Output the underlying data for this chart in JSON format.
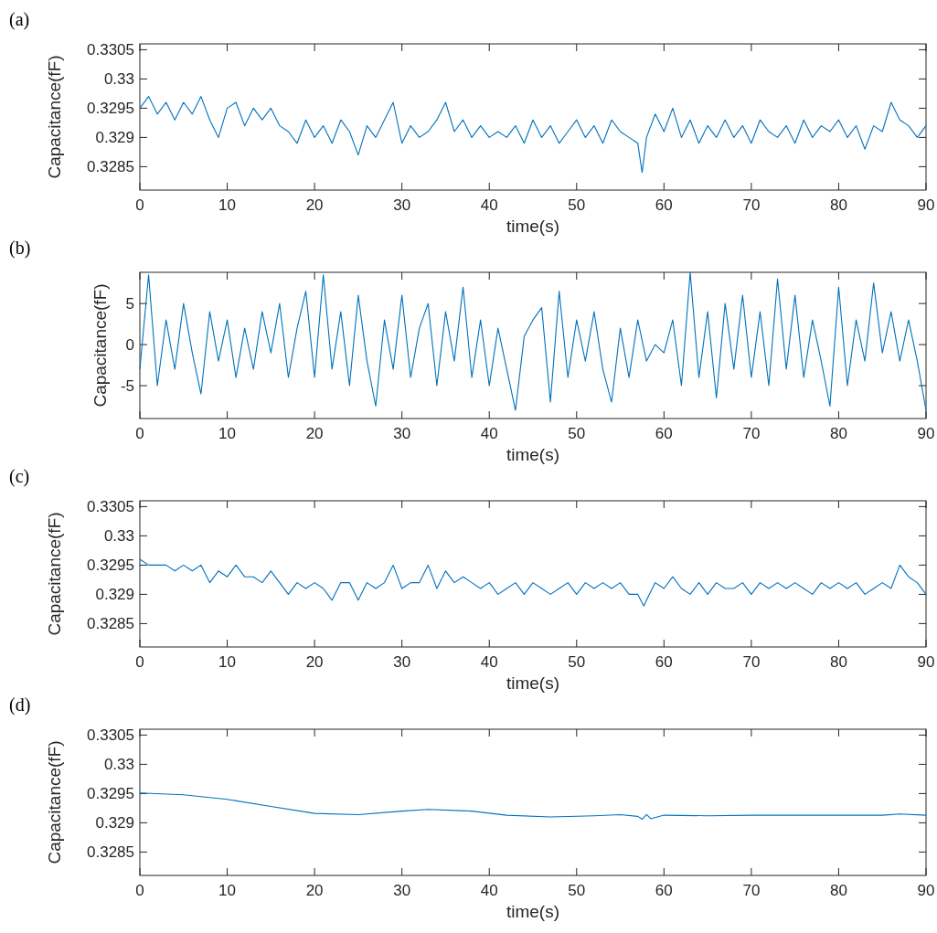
{
  "chart_data": [
    {
      "type": "line",
      "title": "(a)",
      "xlabel": "time(s)",
      "ylabel": "Capacitance(fF)",
      "xlim": [
        0,
        90
      ],
      "ylim": [
        0.3281,
        0.3306
      ],
      "xticks": [
        0,
        10,
        20,
        30,
        40,
        50,
        60,
        70,
        80,
        90
      ],
      "yticks": [
        0.3285,
        0.329,
        0.3295,
        0.33,
        0.3305
      ],
      "series": [
        {
          "color": "#0072bd",
          "x": [
            0,
            1,
            2,
            3,
            4,
            5,
            6,
            7,
            8,
            9,
            10,
            11,
            12,
            13,
            14,
            15,
            16,
            17,
            18,
            19,
            20,
            21,
            22,
            23,
            24,
            25,
            26,
            27,
            28,
            29,
            30,
            31,
            32,
            33,
            34,
            35,
            36,
            37,
            38,
            39,
            40,
            41,
            42,
            43,
            44,
            45,
            46,
            47,
            48,
            49,
            50,
            51,
            52,
            53,
            54,
            55,
            56,
            57,
            57.5,
            58,
            59,
            60,
            61,
            62,
            63,
            64,
            65,
            66,
            67,
            68,
            69,
            70,
            71,
            72,
            73,
            74,
            75,
            76,
            77,
            78,
            79,
            80,
            81,
            82,
            83,
            84,
            85,
            86,
            87,
            88,
            89,
            90
          ],
          "values": [
            0.3295,
            0.3297,
            0.3294,
            0.3296,
            0.3293,
            0.3296,
            0.3294,
            0.3297,
            0.3293,
            0.329,
            0.3295,
            0.3296,
            0.3292,
            0.3295,
            0.3293,
            0.3295,
            0.3292,
            0.3291,
            0.3289,
            0.3293,
            0.329,
            0.3292,
            0.3289,
            0.3293,
            0.3291,
            0.3287,
            0.3292,
            0.329,
            0.3293,
            0.3296,
            0.3289,
            0.3292,
            0.329,
            0.3291,
            0.3293,
            0.3296,
            0.3291,
            0.3293,
            0.329,
            0.3292,
            0.329,
            0.3291,
            0.329,
            0.3292,
            0.3289,
            0.3293,
            0.329,
            0.3292,
            0.3289,
            0.3291,
            0.3293,
            0.329,
            0.3292,
            0.3289,
            0.3293,
            0.3291,
            0.329,
            0.3289,
            0.3284,
            0.329,
            0.3294,
            0.3291,
            0.3295,
            0.329,
            0.3293,
            0.3289,
            0.3292,
            0.329,
            0.3293,
            0.329,
            0.3292,
            0.3289,
            0.3293,
            0.3291,
            0.329,
            0.3292,
            0.3289,
            0.3293,
            0.329,
            0.3292,
            0.3291,
            0.3293,
            0.329,
            0.3292,
            0.3288,
            0.3292,
            0.3291,
            0.3296,
            0.3293,
            0.3292,
            0.329,
            0.3292
          ]
        }
      ]
    },
    {
      "type": "line",
      "title": "(b)",
      "xlabel": "time(s)",
      "ylabel": "Capacitance(fF)",
      "xlim": [
        0,
        90
      ],
      "ylim": [
        -9,
        8.8
      ],
      "xticks": [
        0,
        10,
        20,
        30,
        40,
        50,
        60,
        70,
        80,
        90
      ],
      "yticks": [
        -5,
        0,
        5
      ],
      "series": [
        {
          "color": "#0072bd",
          "x": [
            0,
            1,
            2,
            3,
            4,
            5,
            6,
            7,
            8,
            9,
            10,
            11,
            12,
            13,
            14,
            15,
            16,
            17,
            18,
            19,
            20,
            21,
            22,
            23,
            24,
            25,
            26,
            27,
            28,
            29,
            30,
            31,
            32,
            33,
            34,
            35,
            36,
            37,
            38,
            39,
            40,
            41,
            42,
            43,
            44,
            45,
            46,
            47,
            48,
            49,
            50,
            51,
            52,
            53,
            54,
            55,
            56,
            57,
            58,
            59,
            60,
            61,
            62,
            63,
            64,
            65,
            66,
            67,
            68,
            69,
            70,
            71,
            72,
            73,
            74,
            75,
            76,
            77,
            78,
            79,
            80,
            81,
            82,
            83,
            84,
            85,
            86,
            87,
            88,
            89,
            90
          ],
          "values": [
            -3,
            8.5,
            -5,
            3,
            -3,
            5,
            -1,
            -6,
            4,
            -2,
            3,
            -4,
            2,
            -3,
            4,
            -1,
            5,
            -4,
            2,
            6.5,
            -4,
            8.5,
            -3,
            4,
            -5,
            6,
            -2,
            -7.5,
            3,
            -3,
            6,
            -4,
            2,
            5,
            -5,
            4,
            -2,
            7,
            -4,
            3,
            -5,
            2,
            -3,
            -8,
            1,
            3,
            4.5,
            -7,
            6.5,
            -4,
            3,
            -2,
            4,
            -3,
            -7,
            2,
            -4,
            3,
            -2,
            0,
            -1,
            3,
            -5,
            8.8,
            -4,
            4,
            -6.5,
            5,
            -3,
            6,
            -4,
            4,
            -5,
            8,
            -3,
            6,
            -4,
            3,
            -2,
            -7.5,
            7,
            -5,
            3,
            -2,
            7.5,
            -1,
            4,
            -2,
            3,
            -2,
            -8
          ]
        }
      ]
    },
    {
      "type": "line",
      "title": "(c)",
      "xlabel": "time(s)",
      "ylabel": "Capacitance(fF)",
      "xlim": [
        0,
        90
      ],
      "ylim": [
        0.3281,
        0.3306
      ],
      "xticks": [
        0,
        10,
        20,
        30,
        40,
        50,
        60,
        70,
        80,
        90
      ],
      "yticks": [
        0.3285,
        0.329,
        0.3295,
        0.33,
        0.3305
      ],
      "series": [
        {
          "color": "#0072bd",
          "x": [
            0,
            1,
            2,
            3,
            4,
            5,
            6,
            7,
            8,
            9,
            10,
            11,
            12,
            13,
            14,
            15,
            16,
            17,
            18,
            19,
            20,
            21,
            22,
            23,
            24,
            25,
            26,
            27,
            28,
            29,
            30,
            31,
            32,
            33,
            34,
            35,
            36,
            37,
            38,
            39,
            40,
            41,
            42,
            43,
            44,
            45,
            46,
            47,
            48,
            49,
            50,
            51,
            52,
            53,
            54,
            55,
            56,
            57,
            57.7,
            58,
            59,
            60,
            61,
            62,
            63,
            64,
            65,
            66,
            67,
            68,
            69,
            70,
            71,
            72,
            73,
            74,
            75,
            76,
            77,
            78,
            79,
            80,
            81,
            82,
            83,
            84,
            85,
            86,
            87,
            88,
            89,
            90
          ],
          "values": [
            0.3296,
            0.3295,
            0.3295,
            0.3295,
            0.3294,
            0.3295,
            0.3294,
            0.3295,
            0.3292,
            0.3294,
            0.3293,
            0.3295,
            0.3293,
            0.3293,
            0.3292,
            0.3294,
            0.3292,
            0.329,
            0.3292,
            0.3291,
            0.3292,
            0.3291,
            0.3289,
            0.3292,
            0.3292,
            0.3289,
            0.3292,
            0.3291,
            0.3292,
            0.3295,
            0.3291,
            0.3292,
            0.3292,
            0.3295,
            0.3291,
            0.3294,
            0.3292,
            0.3293,
            0.3292,
            0.3291,
            0.3292,
            0.329,
            0.3291,
            0.3292,
            0.329,
            0.3292,
            0.3291,
            0.329,
            0.3291,
            0.3292,
            0.329,
            0.3292,
            0.3291,
            0.3292,
            0.3291,
            0.3292,
            0.329,
            0.329,
            0.3288,
            0.3289,
            0.3292,
            0.3291,
            0.3293,
            0.3291,
            0.329,
            0.3292,
            0.329,
            0.3292,
            0.3291,
            0.3291,
            0.3292,
            0.329,
            0.3292,
            0.3291,
            0.3292,
            0.3291,
            0.3292,
            0.3291,
            0.329,
            0.3292,
            0.3291,
            0.3292,
            0.3291,
            0.3292,
            0.329,
            0.3291,
            0.3292,
            0.3291,
            0.3295,
            0.3293,
            0.3292,
            0.329
          ]
        }
      ]
    },
    {
      "type": "line",
      "title": "(d)",
      "xlabel": "time(s)",
      "ylabel": "Capacitance(fF)",
      "xlim": [
        0,
        90
      ],
      "ylim": [
        0.3281,
        0.3306
      ],
      "xticks": [
        0,
        10,
        20,
        30,
        40,
        50,
        60,
        70,
        80,
        90
      ],
      "yticks": [
        0.3285,
        0.329,
        0.3295,
        0.33,
        0.3305
      ],
      "series": [
        {
          "color": "#0072bd",
          "x": [
            0,
            5,
            10,
            15,
            20,
            25,
            30,
            33,
            38,
            42,
            47,
            52,
            55,
            57,
            57.5,
            58,
            58.5,
            60,
            65,
            70,
            75,
            80,
            85,
            87,
            90
          ],
          "values": [
            0.32951,
            0.32948,
            0.3294,
            0.32928,
            0.32916,
            0.32914,
            0.3292,
            0.32923,
            0.3292,
            0.32913,
            0.3291,
            0.32912,
            0.32914,
            0.32911,
            0.32906,
            0.32914,
            0.32907,
            0.32913,
            0.32912,
            0.32913,
            0.32913,
            0.32913,
            0.32913,
            0.32915,
            0.32913
          ]
        }
      ]
    }
  ]
}
